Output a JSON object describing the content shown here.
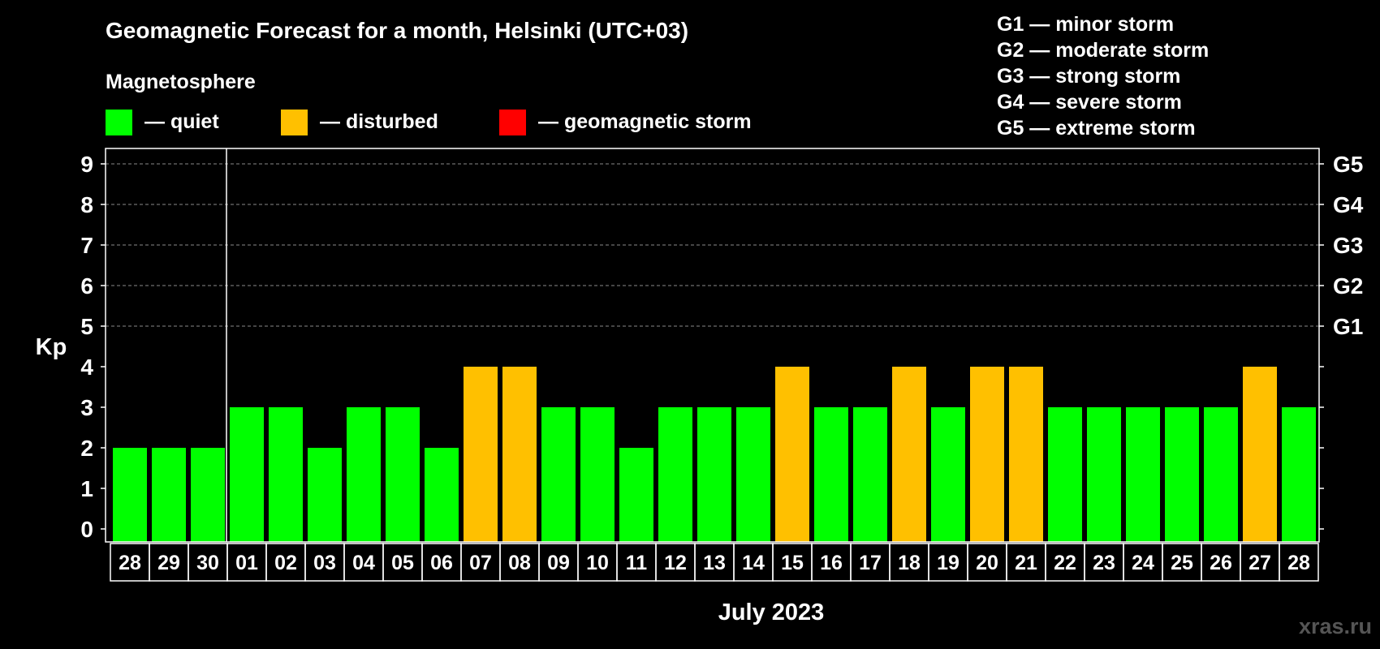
{
  "chart_data": {
    "type": "bar",
    "title": "Geomagnetic Forecast for a month, Helsinki (UTC+03)",
    "legend_title": "Magnetosphere",
    "legend": [
      {
        "key": "quiet",
        "label": "— quiet",
        "color": "#00ff00"
      },
      {
        "key": "disturbed",
        "label": "— disturbed",
        "color": "#ffc000"
      },
      {
        "key": "storm",
        "label": "— geomagnetic storm",
        "color": "#ff0000"
      }
    ],
    "storm_scale": [
      "G1 — minor storm",
      "G2 — moderate storm",
      "G3 — strong storm",
      "G4 — severe storm",
      "G5 — extreme storm"
    ],
    "ylabel": "Kp",
    "xlabel": "July 2023",
    "ylim": [
      0,
      9
    ],
    "yticks": [
      0,
      1,
      2,
      3,
      4,
      5,
      6,
      7,
      8,
      9
    ],
    "right_ticks": [
      {
        "kp": 5,
        "label": "G1"
      },
      {
        "kp": 6,
        "label": "G2"
      },
      {
        "kp": 7,
        "label": "G3"
      },
      {
        "kp": 8,
        "label": "G4"
      },
      {
        "kp": 9,
        "label": "G5"
      }
    ],
    "grid": "dashed horizontal at Kp 5–9",
    "month_separator_after_index": 2,
    "categories": [
      "28",
      "29",
      "30",
      "01",
      "02",
      "03",
      "04",
      "05",
      "06",
      "07",
      "08",
      "09",
      "10",
      "11",
      "12",
      "13",
      "14",
      "15",
      "16",
      "17",
      "18",
      "19",
      "20",
      "21",
      "22",
      "23",
      "24",
      "25",
      "26",
      "27",
      "28"
    ],
    "values": [
      2,
      2,
      2,
      3,
      3,
      2,
      3,
      3,
      2,
      4,
      4,
      3,
      3,
      2,
      3,
      3,
      3,
      4,
      3,
      3,
      4,
      3,
      4,
      4,
      3,
      3,
      3,
      3,
      3,
      4,
      3
    ],
    "status": [
      "quiet",
      "quiet",
      "quiet",
      "quiet",
      "quiet",
      "quiet",
      "quiet",
      "quiet",
      "quiet",
      "disturbed",
      "disturbed",
      "quiet",
      "quiet",
      "quiet",
      "quiet",
      "quiet",
      "quiet",
      "disturbed",
      "quiet",
      "quiet",
      "disturbed",
      "quiet",
      "disturbed",
      "disturbed",
      "quiet",
      "quiet",
      "quiet",
      "quiet",
      "quiet",
      "disturbed",
      "quiet"
    ]
  },
  "watermark": "xras.ru"
}
